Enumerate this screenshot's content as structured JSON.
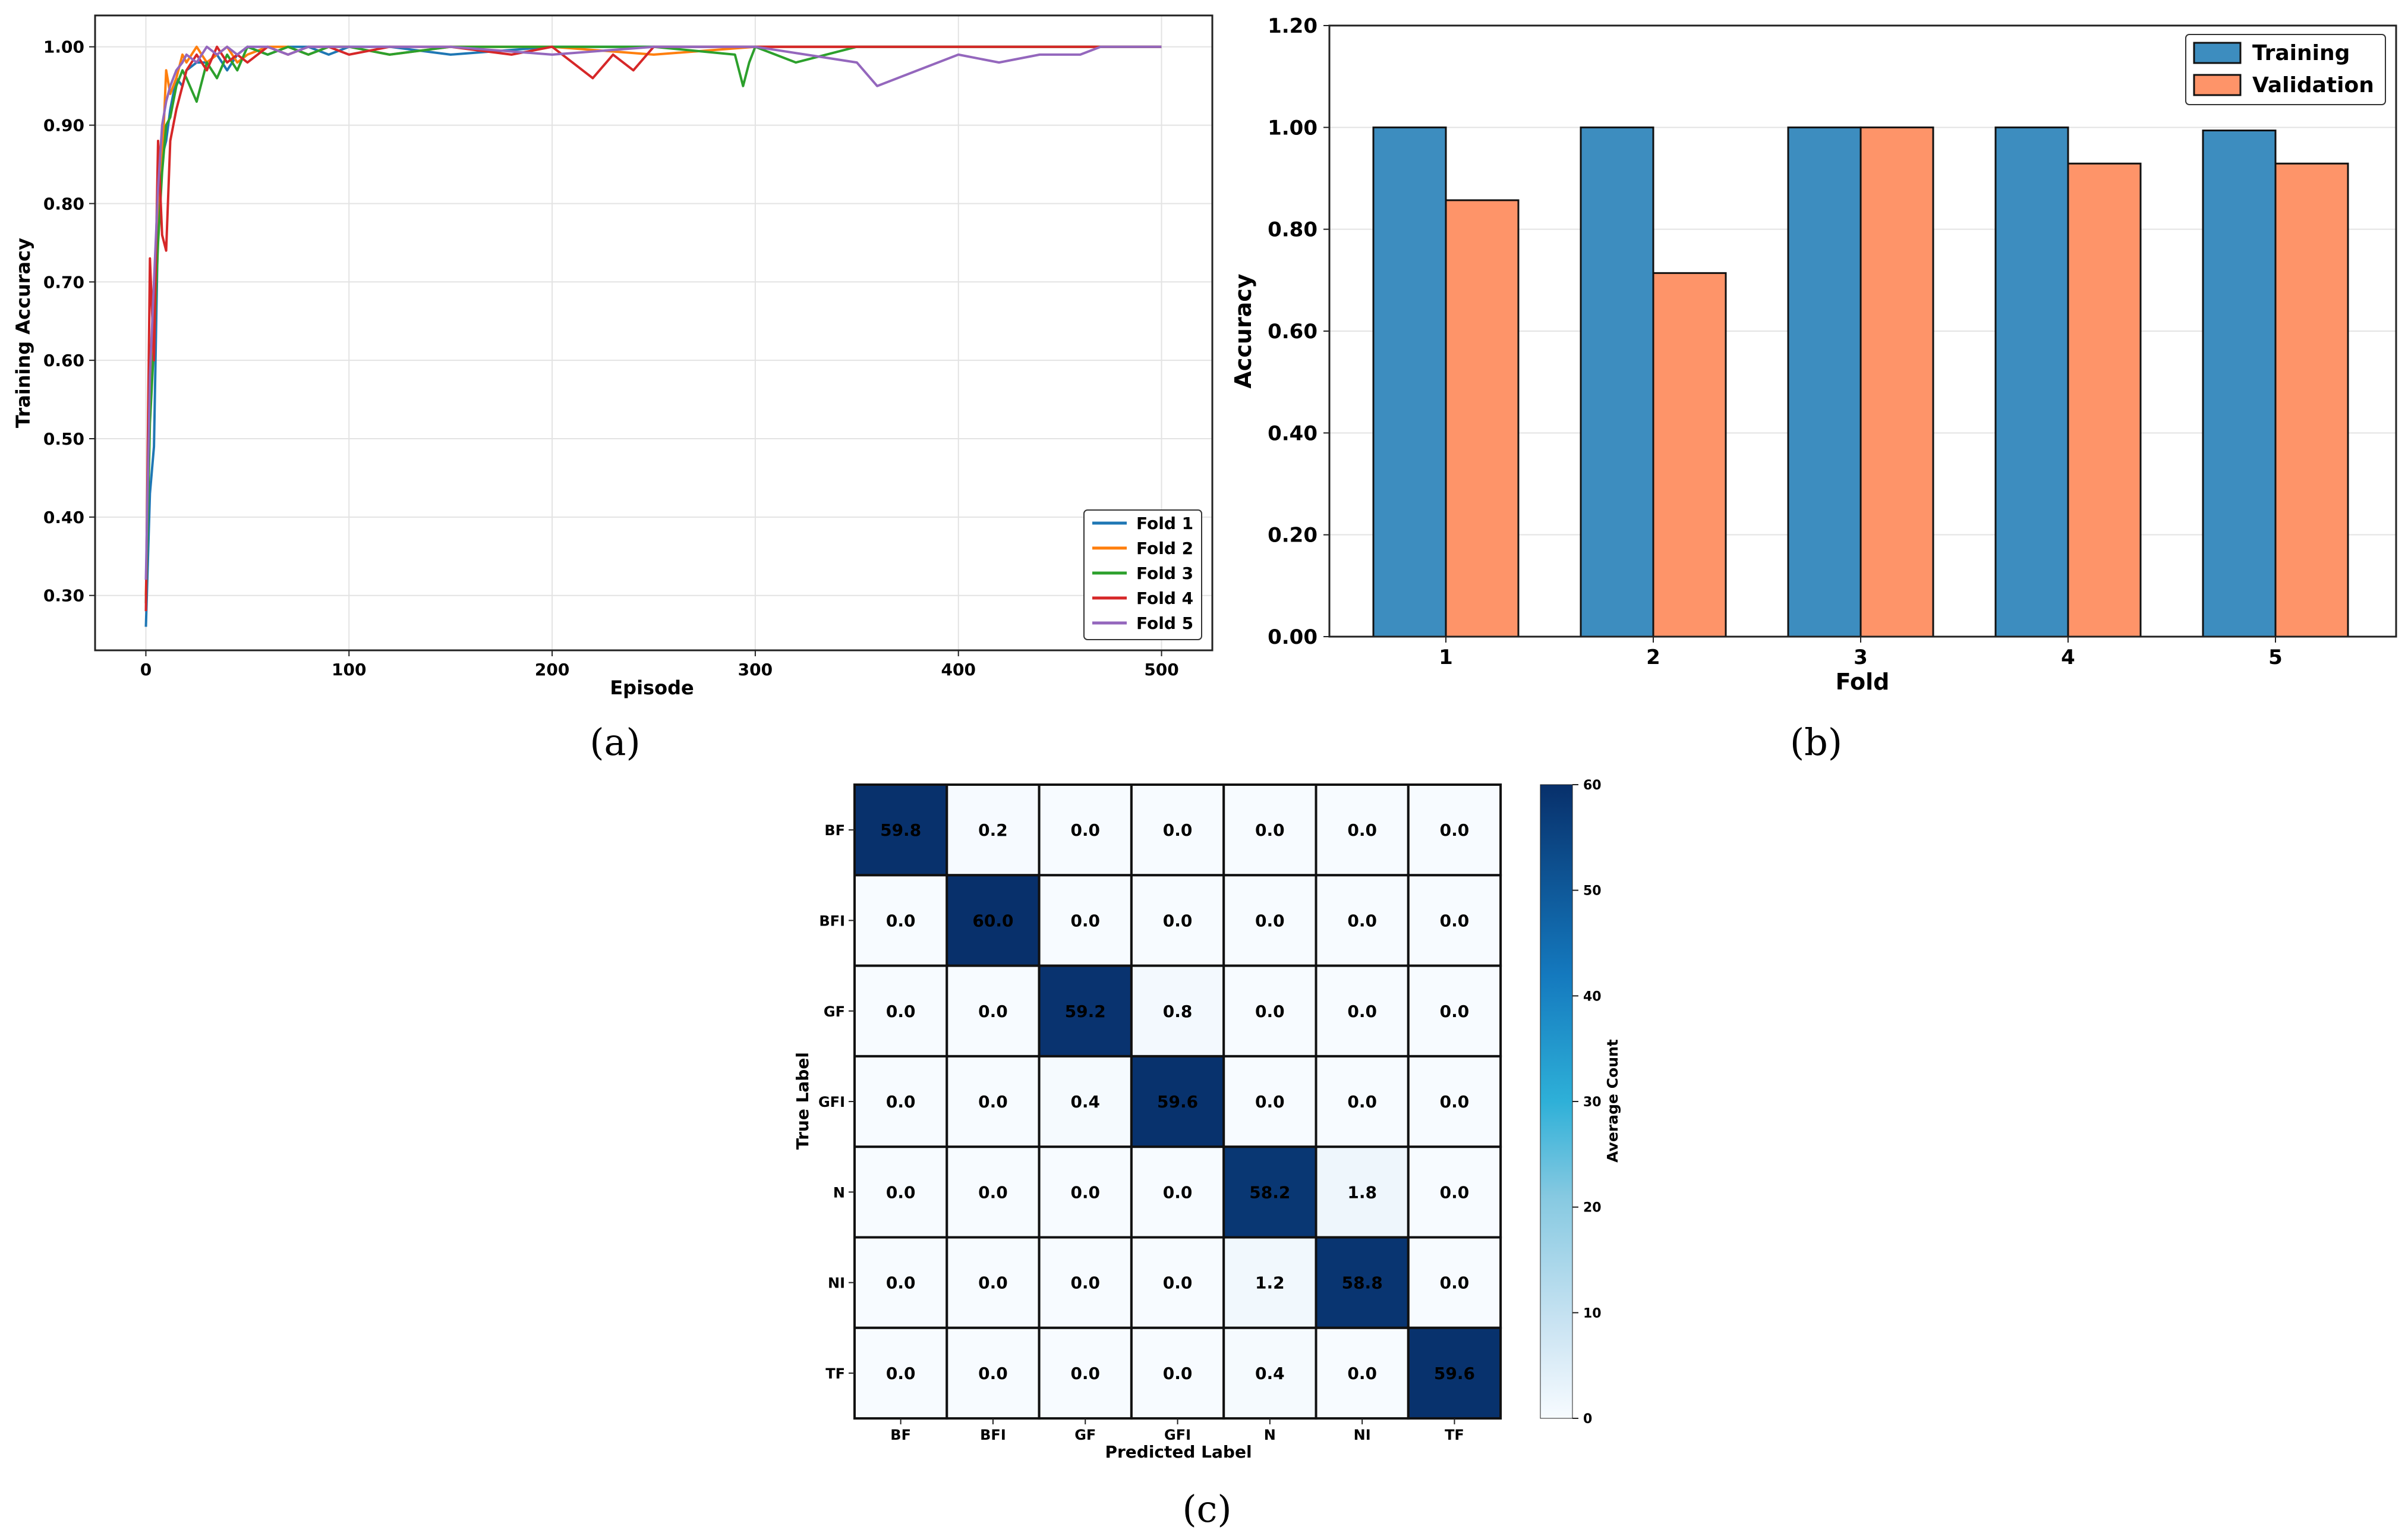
{
  "chart_data": [
    {
      "panel": "(a)",
      "type": "line",
      "title": "",
      "xlabel": "Episode",
      "ylabel": "Training Accuracy",
      "xlim": [
        -25,
        525
      ],
      "ylim": [
        0.23,
        1.04
      ],
      "xticks": [
        0,
        100,
        200,
        300,
        400,
        500
      ],
      "yticks": [
        0.3,
        0.4,
        0.5,
        0.6,
        0.7,
        0.8,
        0.9,
        1.0
      ],
      "grid": true,
      "legend": "bottom-right",
      "series": [
        {
          "name": "Fold 1",
          "color": "#1f77b4",
          "x": [
            0,
            2,
            4,
            6,
            8,
            10,
            12,
            15,
            18,
            20,
            25,
            30,
            35,
            40,
            45,
            50,
            60,
            70,
            80,
            90,
            100,
            120,
            150,
            200,
            250,
            300,
            350,
            400,
            450,
            500
          ],
          "y": [
            0.26,
            0.43,
            0.49,
            0.78,
            0.86,
            0.88,
            0.92,
            0.96,
            0.95,
            0.97,
            0.98,
            0.98,
            0.99,
            0.97,
            0.99,
            1.0,
            0.99,
            1.0,
            1.0,
            0.99,
            1.0,
            1.0,
            0.99,
            1.0,
            1.0,
            1.0,
            1.0,
            1.0,
            1.0,
            1.0
          ]
        },
        {
          "name": "Fold 2",
          "color": "#ff7f0e",
          "x": [
            0,
            2,
            4,
            6,
            8,
            10,
            12,
            15,
            18,
            20,
            25,
            30,
            35,
            40,
            45,
            50,
            60,
            70,
            80,
            90,
            100,
            120,
            150,
            200,
            250,
            300,
            350,
            400,
            450,
            500
          ],
          "y": [
            0.3,
            0.55,
            0.68,
            0.8,
            0.85,
            0.97,
            0.94,
            0.96,
            0.99,
            0.98,
            1.0,
            0.98,
            0.99,
            1.0,
            0.98,
            0.99,
            1.0,
            1.0,
            0.99,
            1.0,
            1.0,
            0.99,
            1.0,
            1.0,
            0.99,
            1.0,
            1.0,
            1.0,
            1.0,
            1.0
          ]
        },
        {
          "name": "Fold 3",
          "color": "#2ca02c",
          "x": [
            0,
            2,
            4,
            6,
            8,
            10,
            12,
            15,
            18,
            20,
            25,
            30,
            35,
            40,
            45,
            50,
            60,
            70,
            80,
            90,
            100,
            120,
            150,
            200,
            250,
            290,
            294,
            297,
            300,
            320,
            350,
            400,
            450,
            500
          ],
          "y": [
            0.29,
            0.52,
            0.62,
            0.75,
            0.84,
            0.9,
            0.91,
            0.95,
            0.97,
            0.96,
            0.93,
            0.98,
            0.96,
            0.99,
            0.97,
            1.0,
            0.99,
            1.0,
            0.99,
            1.0,
            1.0,
            0.99,
            1.0,
            1.0,
            1.0,
            0.99,
            0.95,
            0.98,
            1.0,
            0.98,
            1.0,
            1.0,
            1.0,
            1.0
          ]
        },
        {
          "name": "Fold 4",
          "color": "#d62728",
          "x": [
            0,
            2,
            4,
            6,
            8,
            10,
            12,
            15,
            18,
            20,
            25,
            30,
            35,
            40,
            45,
            50,
            60,
            70,
            80,
            90,
            100,
            120,
            150,
            180,
            200,
            210,
            220,
            230,
            240,
            250,
            300,
            350,
            400,
            450,
            500
          ],
          "y": [
            0.28,
            0.73,
            0.6,
            0.88,
            0.76,
            0.74,
            0.88,
            0.92,
            0.95,
            0.97,
            0.99,
            0.97,
            1.0,
            0.98,
            0.99,
            0.98,
            1.0,
            0.99,
            1.0,
            1.0,
            0.99,
            1.0,
            1.0,
            0.99,
            1.0,
            0.98,
            0.96,
            0.99,
            0.97,
            1.0,
            1.0,
            1.0,
            1.0,
            1.0,
            1.0
          ]
        },
        {
          "name": "Fold 5",
          "color": "#9467bd",
          "x": [
            0,
            2,
            4,
            6,
            8,
            10,
            12,
            15,
            18,
            20,
            25,
            30,
            35,
            40,
            45,
            50,
            60,
            70,
            80,
            90,
            100,
            150,
            200,
            250,
            300,
            350,
            360,
            380,
            400,
            420,
            440,
            460,
            470,
            480,
            500
          ],
          "y": [
            0.32,
            0.58,
            0.7,
            0.82,
            0.9,
            0.93,
            0.95,
            0.97,
            0.98,
            0.99,
            0.98,
            1.0,
            0.99,
            1.0,
            0.99,
            1.0,
            1.0,
            0.99,
            1.0,
            1.0,
            1.0,
            1.0,
            0.99,
            1.0,
            1.0,
            0.98,
            0.95,
            0.97,
            0.99,
            0.98,
            0.99,
            0.99,
            1.0,
            1.0,
            1.0
          ]
        }
      ]
    },
    {
      "panel": "(b)",
      "type": "bar",
      "title": "",
      "xlabel": "Fold",
      "ylabel": "Accuracy",
      "categories": [
        "1",
        "2",
        "3",
        "4",
        "5"
      ],
      "ylim": [
        0,
        1.2
      ],
      "yticks": [
        0.0,
        0.2,
        0.4,
        0.6,
        0.8,
        1.0,
        1.2
      ],
      "grid": true,
      "legend": "top-right",
      "series": [
        {
          "name": "Training",
          "color": "#3d8dbf",
          "values": [
            1.0,
            1.0,
            1.0,
            1.0,
            0.994
          ]
        },
        {
          "name": "Validation",
          "color": "#fe9469",
          "values": [
            0.857,
            0.714,
            1.0,
            0.929,
            0.929
          ]
        }
      ]
    },
    {
      "panel": "(c)",
      "type": "heatmap",
      "title": "",
      "xlabel": "Predicted Label",
      "ylabel": "True Label",
      "x_labels": [
        "BF",
        "BFI",
        "GF",
        "GFI",
        "N",
        "NI",
        "TF"
      ],
      "y_labels": [
        "BF",
        "BFI",
        "GF",
        "GFI",
        "N",
        "NI",
        "TF"
      ],
      "matrix": [
        [
          59.8,
          0.2,
          0.0,
          0.0,
          0.0,
          0.0,
          0.0
        ],
        [
          0.0,
          60.0,
          0.0,
          0.0,
          0.0,
          0.0,
          0.0
        ],
        [
          0.0,
          0.0,
          59.2,
          0.8,
          0.0,
          0.0,
          0.0
        ],
        [
          0.0,
          0.0,
          0.4,
          59.6,
          0.0,
          0.0,
          0.0
        ],
        [
          0.0,
          0.0,
          0.0,
          0.0,
          58.2,
          1.8,
          0.0
        ],
        [
          0.0,
          0.0,
          0.0,
          0.0,
          1.2,
          58.8,
          0.0
        ],
        [
          0.0,
          0.0,
          0.0,
          0.0,
          0.4,
          0.0,
          59.6
        ]
      ],
      "colorbar_label": "Average Count",
      "colorbar_range": [
        0,
        60
      ],
      "colorbar_ticks": [
        0,
        10,
        20,
        30,
        40,
        50,
        60
      ]
    }
  ],
  "captions": {
    "a": "(a)",
    "b": "(b)",
    "c": "(c)"
  }
}
